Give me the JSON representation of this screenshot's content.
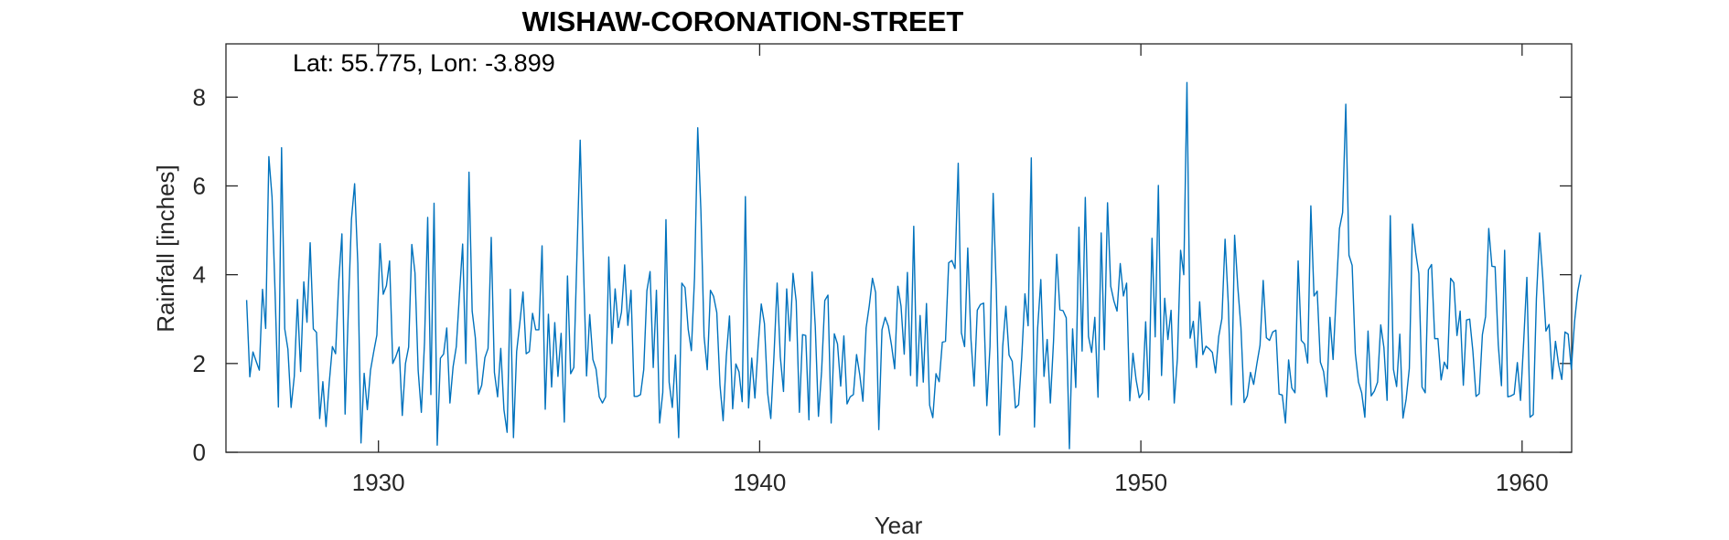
{
  "chart_data": {
    "type": "line",
    "title": "WISHAW-CORONATION-STREET",
    "annotation": "Lat: 55.775, Lon: -3.899",
    "xlabel": "Year",
    "ylabel": "Rainfall [inches]",
    "xlim": [
      1926.0,
      1961.3
    ],
    "ylim": [
      0,
      9.2
    ],
    "xticks": [
      1930,
      1940,
      1950,
      1960
    ],
    "yticks": [
      0,
      2,
      4,
      6,
      8
    ],
    "grid": false,
    "legend": "none",
    "colors": {
      "series": "#0072BD",
      "axes": "#262626"
    },
    "series": [
      {
        "x_start": 1926.542,
        "x_step_months": 1,
        "values": [
          3.43,
          1.7,
          2.26,
          2.05,
          1.85,
          3.67,
          2.79,
          6.66,
          5.75,
          3.5,
          1.02,
          6.86,
          2.78,
          2.32,
          1.01,
          1.71,
          3.44,
          1.82,
          3.84,
          2.93,
          4.72,
          2.78,
          2.7,
          0.76,
          1.59,
          0.58,
          1.56,
          2.38,
          2.22,
          3.85,
          4.92,
          0.86,
          3.17,
          5.25,
          6.05,
          4.25,
          0.21,
          1.78,
          0.96,
          1.85,
          2.26,
          2.64,
          4.7,
          3.56,
          3.75,
          4.31,
          2.0,
          2.16,
          2.37,
          0.83,
          2.0,
          2.37,
          4.68,
          4.04,
          1.84,
          0.9,
          2.48,
          5.29,
          1.3,
          5.61,
          0.16,
          2.12,
          2.21,
          2.8,
          1.11,
          1.93,
          2.38,
          3.56,
          4.69,
          2.0,
          6.31,
          3.18,
          2.58,
          1.31,
          1.51,
          2.13,
          2.34,
          4.84,
          1.8,
          1.25,
          2.34,
          0.96,
          0.45,
          3.67,
          0.33,
          2.27,
          2.91,
          3.61,
          2.22,
          2.27,
          3.13,
          2.76,
          2.76,
          4.65,
          0.97,
          3.11,
          1.47,
          2.92,
          1.71,
          2.68,
          0.68,
          3.97,
          1.77,
          1.91,
          4.48,
          7.03,
          4.29,
          1.72,
          3.1,
          2.09,
          1.87,
          1.25,
          1.11,
          1.25,
          4.4,
          2.45,
          3.68,
          2.81,
          3.16,
          4.22,
          2.86,
          3.65,
          1.26,
          1.26,
          1.3,
          1.86,
          3.64,
          4.07,
          1.91,
          3.65,
          0.66,
          1.35,
          5.24,
          1.58,
          1.01,
          2.19,
          0.33,
          3.81,
          3.71,
          2.77,
          2.29,
          3.94,
          7.31,
          5.44,
          2.61,
          1.86,
          3.65,
          3.51,
          3.15,
          1.52,
          0.71,
          2.16,
          3.07,
          0.98,
          1.99,
          1.81,
          1.14,
          5.76,
          1.0,
          2.12,
          1.22,
          2.38,
          3.34,
          2.9,
          1.34,
          0.76,
          2.17,
          3.81,
          2.15,
          1.37,
          3.68,
          2.51,
          4.03,
          3.4,
          0.9,
          2.65,
          2.63,
          0.73,
          4.06,
          2.84,
          0.81,
          1.83,
          3.42,
          3.54,
          0.66,
          2.67,
          2.44,
          1.49,
          2.62,
          1.09,
          1.25,
          1.3,
          2.2,
          1.75,
          1.15,
          2.8,
          3.3,
          3.92,
          3.6,
          0.51,
          2.76,
          3.04,
          2.84,
          2.41,
          1.88,
          3.74,
          3.29,
          2.21,
          4.05,
          1.73,
          5.09,
          1.49,
          3.08,
          1.58,
          3.35,
          1.06,
          0.78,
          1.77,
          1.59,
          2.48,
          2.5,
          4.27,
          4.32,
          4.14,
          6.51,
          2.69,
          2.38,
          4.6,
          2.56,
          1.49,
          3.2,
          3.33,
          3.36,
          1.05,
          2.38,
          5.83,
          3.64,
          0.39,
          2.38,
          3.29,
          2.19,
          2.05,
          1.0,
          1.07,
          2.15,
          3.57,
          2.85,
          6.63,
          0.57,
          2.79,
          3.89,
          1.71,
          2.54,
          1.11,
          2.5,
          4.46,
          3.21,
          3.19,
          3.03,
          0.08,
          2.78,
          1.46,
          5.07,
          2.28,
          5.74,
          2.61,
          2.25,
          3.04,
          1.24,
          4.94,
          2.31,
          5.62,
          3.74,
          3.41,
          3.18,
          4.25,
          3.52,
          3.81,
          1.16,
          2.23,
          1.63,
          1.23,
          1.34,
          2.94,
          1.18,
          4.82,
          2.6,
          6.01,
          1.73,
          3.47,
          2.54,
          3.2,
          1.11,
          2.12,
          4.55,
          4.0,
          8.33,
          2.57,
          2.95,
          1.91,
          3.39,
          2.2,
          2.39,
          2.33,
          2.25,
          1.79,
          2.61,
          3.01,
          4.8,
          3.37,
          1.07,
          4.89,
          3.73,
          2.81,
          1.12,
          1.27,
          1.8,
          1.53,
          1.99,
          2.41,
          3.87,
          2.58,
          2.52,
          2.71,
          2.75,
          1.31,
          1.29,
          0.66,
          2.08,
          1.45,
          1.34,
          4.31,
          2.52,
          2.44,
          2.01,
          5.55,
          3.52,
          3.63,
          2.03,
          1.82,
          1.25,
          3.04,
          2.09,
          3.58,
          5.04,
          5.4,
          7.84,
          4.44,
          4.21,
          2.23,
          1.58,
          1.34,
          0.79,
          2.73,
          1.27,
          1.38,
          1.58,
          2.87,
          2.36,
          1.17,
          5.33,
          1.87,
          1.48,
          2.66,
          0.77,
          1.2,
          1.89,
          5.14,
          4.5,
          4.02,
          1.47,
          1.34,
          4.11,
          4.23,
          2.56,
          2.56,
          1.63,
          2.03,
          1.88,
          3.92,
          3.82,
          2.63,
          3.18,
          1.51,
          2.98,
          3.0,
          2.28,
          1.26,
          1.32,
          2.65,
          3.06,
          5.04,
          4.19,
          4.18,
          2.42,
          1.5,
          4.55,
          1.25,
          1.27,
          1.31,
          2.02,
          1.17,
          2.5,
          3.94,
          0.79,
          0.85,
          3.46,
          4.94,
          3.94,
          2.73,
          2.88,
          1.65,
          2.5,
          1.97,
          1.64,
          2.71,
          2.66,
          1.87,
          2.94,
          3.62,
          4.0
        ]
      }
    ]
  }
}
